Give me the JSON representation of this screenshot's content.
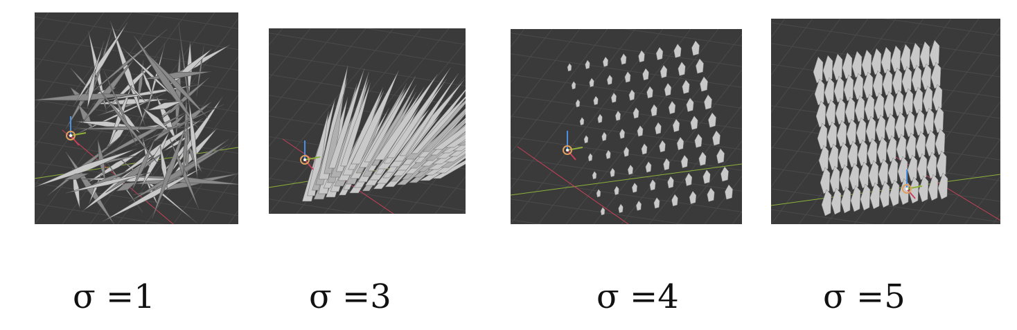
{
  "panels": [
    {
      "caption": "σ =1",
      "sigma": 1,
      "style": "chaotic"
    },
    {
      "caption": "σ =3",
      "sigma": 3,
      "style": "spikes"
    },
    {
      "caption": "σ =4",
      "sigma": 4,
      "style": "sparse-leaves"
    },
    {
      "caption": "σ =5",
      "sigma": 5,
      "style": "dense-leaves"
    }
  ],
  "colors": {
    "viewport_bg": "#3a3a3a",
    "grid": "#4a4a4a",
    "shape_light": "#c9c9c9",
    "shape_dark": "#8a8a8a",
    "axis_x": "#c8405a",
    "axis_y": "#8fb33a",
    "gizmo_orange": "#e0a060"
  }
}
